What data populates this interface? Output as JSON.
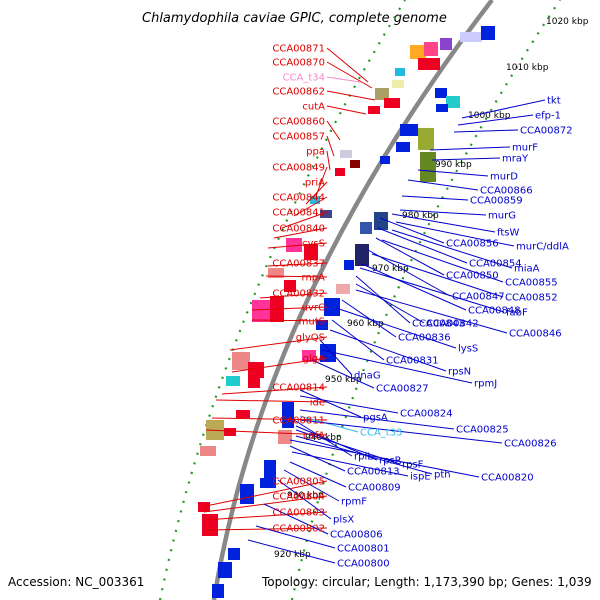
{
  "title": "Chlamydophila caviae GPIC, complete genome",
  "accession": "Accession: NC_003361",
  "summary": "Topology: circular; Length: 1,173,390 bp; Genes: 1,039",
  "colors": {
    "left_labels": "#e00000",
    "right_labels": "#0000cc",
    "trna_label_left": "#ff88cc",
    "trna_label_right": "#33bbee",
    "backbone": "#888888",
    "dots": "#229922"
  },
  "scale_ticks": [
    "920 kbp",
    "930 kbp",
    "940 kbp",
    "950 kbp",
    "960 kbp",
    "970 kbp",
    "980 kbp",
    "990 kbp",
    "1000 kbp",
    "1010 kbp",
    "1020 kbp"
  ],
  "left_labels": [
    "CCA00871",
    "CCA00870",
    "CCA_t34",
    "CCA00862",
    "cutA",
    "CCA00860",
    "CCA00857",
    "ppa",
    "CCA00849",
    "priA",
    "CCA00844",
    "CCA00841",
    "CCA00840",
    "cysS",
    "CCA00837",
    "rnpA",
    "CCA00832",
    "uvrC",
    "mutS",
    "glyQS",
    "glgA",
    "CCA00814",
    "ide",
    "CCA00811",
    "cafA",
    "CCA00805",
    "CCA00804",
    "CCA00803",
    "CCA00802"
  ],
  "right_labels": [
    "tkt",
    "efp-1",
    "CCA00872",
    "murF",
    "mraY",
    "murD",
    "CCA00866",
    "CCA00859",
    "murG",
    "ftsW",
    "CCA00856",
    "murC/ddlA",
    "CCA00854",
    "miaA",
    "CCA00850",
    "CCA00855",
    "CCA00847",
    "CCA00852",
    "CCA00848",
    "fabF",
    "CCA00843",
    "CCA00842",
    "CCA00846",
    "CCA00836",
    "lysS",
    "CCA00831",
    "rpsN",
    "dnaG",
    "rpmJ",
    "CCA00827",
    "pgsA",
    "CCA00824",
    "CCA00825",
    "CCA_t33",
    "CCA00826",
    "rplL",
    "rpsR",
    "rpsF",
    "pth",
    "CCA00820",
    "CCA00813",
    "ispE",
    "CCA00809",
    "rpmF",
    "plsX",
    "CCA00806",
    "CCA00801",
    "CCA00800"
  ]
}
